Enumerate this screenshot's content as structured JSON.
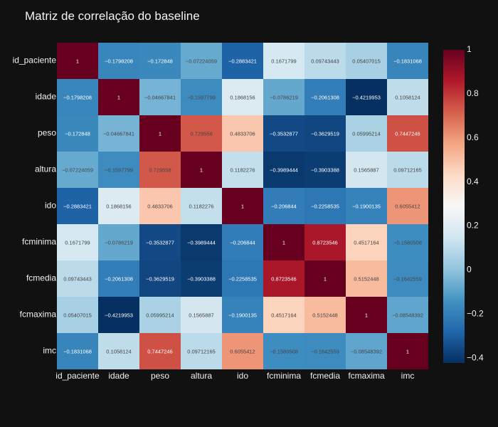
{
  "chart_data": {
    "type": "heatmap",
    "title": "Matriz de correlação do baseline",
    "xlabel": "",
    "ylabel": "",
    "x": [
      "id_paciente",
      "idade",
      "peso",
      "altura",
      "ido",
      "fcminima",
      "fcmedia",
      "fcmaxima",
      "imc"
    ],
    "y": [
      "id_paciente",
      "idade",
      "peso",
      "altura",
      "ido",
      "fcminima",
      "fcmedia",
      "fcmaxima",
      "imc"
    ],
    "z": [
      [
        1,
        -0.1798208,
        -0.172848,
        -0.07224059,
        -0.2883421,
        0.1671799,
        0.09743443,
        0.05407015,
        -0.1831068
      ],
      [
        -0.1798208,
        1,
        -0.04667841,
        -0.1597799,
        0.1868156,
        -0.0786219,
        -0.2061308,
        -0.4219953,
        0.1058124
      ],
      [
        -0.172848,
        -0.04667841,
        1,
        0.729558,
        0.4833706,
        -0.3532877,
        -0.3629519,
        0.05995214,
        0.7447246
      ],
      [
        -0.07224059,
        -0.1597799,
        0.729558,
        1,
        0.1182276,
        -0.3989444,
        -0.3903388,
        0.1565887,
        0.09712165
      ],
      [
        -0.2883421,
        0.1868156,
        0.4833706,
        0.1182276,
        1,
        -0.206844,
        -0.2258535,
        -0.1900135,
        0.6055412
      ],
      [
        0.1671799,
        -0.0786219,
        -0.3532877,
        -0.3989444,
        -0.206844,
        1,
        0.8723546,
        0.4517164,
        -0.1580508
      ],
      [
        0.09743443,
        -0.2061308,
        -0.3629519,
        -0.3903388,
        -0.2258535,
        0.8723546,
        1,
        0.5152448,
        -0.1642559
      ],
      [
        0.05407015,
        -0.4219953,
        0.05995214,
        0.1565887,
        -0.1900135,
        0.4517164,
        0.5152448,
        1,
        -0.08548392
      ],
      [
        -0.1831068,
        0.1058124,
        0.7447246,
        0.09712165,
        0.6055412,
        -0.1580508,
        -0.1642559,
        -0.08548392,
        1
      ]
    ],
    "z_labels": [
      [
        "1",
        "−0.1798208",
        "−0.172848",
        "−0.07224059",
        "−0.2883421",
        "0.1671799",
        "0.09743443",
        "0.05407015",
        "−0.1831068"
      ],
      [
        "−0.1798208",
        "1",
        "−0.04667841",
        "−0.1597799",
        "0.1868156",
        "−0.0786219",
        "−0.2061308",
        "−0.4219953",
        "0.1058124"
      ],
      [
        "−0.172848",
        "−0.04667841",
        "1",
        "0.729558",
        "0.4833706",
        "−0.3532877",
        "−0.3629519",
        "0.05995214",
        "0.7447246"
      ],
      [
        "−0.07224059",
        "−0.1597799",
        "0.729558",
        "1",
        "0.1182276",
        "−0.3989444",
        "−0.3903388",
        "0.1565887",
        "0.09712165"
      ],
      [
        "−0.2883421",
        "0.1868156",
        "0.4833706",
        "0.1182276",
        "1",
        "−0.206844",
        "−0.2258535",
        "−0.1900135",
        "0.6055412"
      ],
      [
        "0.1671799",
        "−0.0786219",
        "−0.3532877",
        "−0.3989444",
        "−0.206844",
        "1",
        "0.8723546",
        "0.4517164",
        "−0.1580508"
      ],
      [
        "0.09743443",
        "−0.2061308",
        "−0.3629519",
        "−0.3903388",
        "−0.2258535",
        "0.8723546",
        "1",
        "0.5152448",
        "−0.1642559"
      ],
      [
        "0.05407015",
        "−0.4219953",
        "0.05995214",
        "0.1565887",
        "−0.1900135",
        "0.4517164",
        "0.5152448",
        "1",
        "−0.08548392"
      ],
      [
        "−0.1831068",
        "0.1058124",
        "0.7447246",
        "0.09712165",
        "0.6055412",
        "−0.1580508",
        "−0.1642559",
        "−0.08548392",
        "1"
      ]
    ],
    "zlim": [
      -0.4219953,
      1
    ],
    "colorscale": "RdBu_r",
    "colorscale_stops": [
      "#053061",
      "#2166ac",
      "#4393c3",
      "#92c5de",
      "#d1e5f0",
      "#f7f7f7",
      "#fddbc7",
      "#f4a582",
      "#d6604d",
      "#b2182b",
      "#67001f"
    ],
    "colorbar": {
      "ticks": [
        1,
        0.8,
        0.6,
        0.4,
        0.2,
        0,
        -0.2,
        -0.4
      ],
      "tick_labels": [
        "1",
        "0.8",
        "0.6",
        "0.4",
        "0.2",
        "0",
        "−0.2",
        "−0.4"
      ],
      "placement": "right"
    },
    "grid": false,
    "background": "#111111"
  }
}
